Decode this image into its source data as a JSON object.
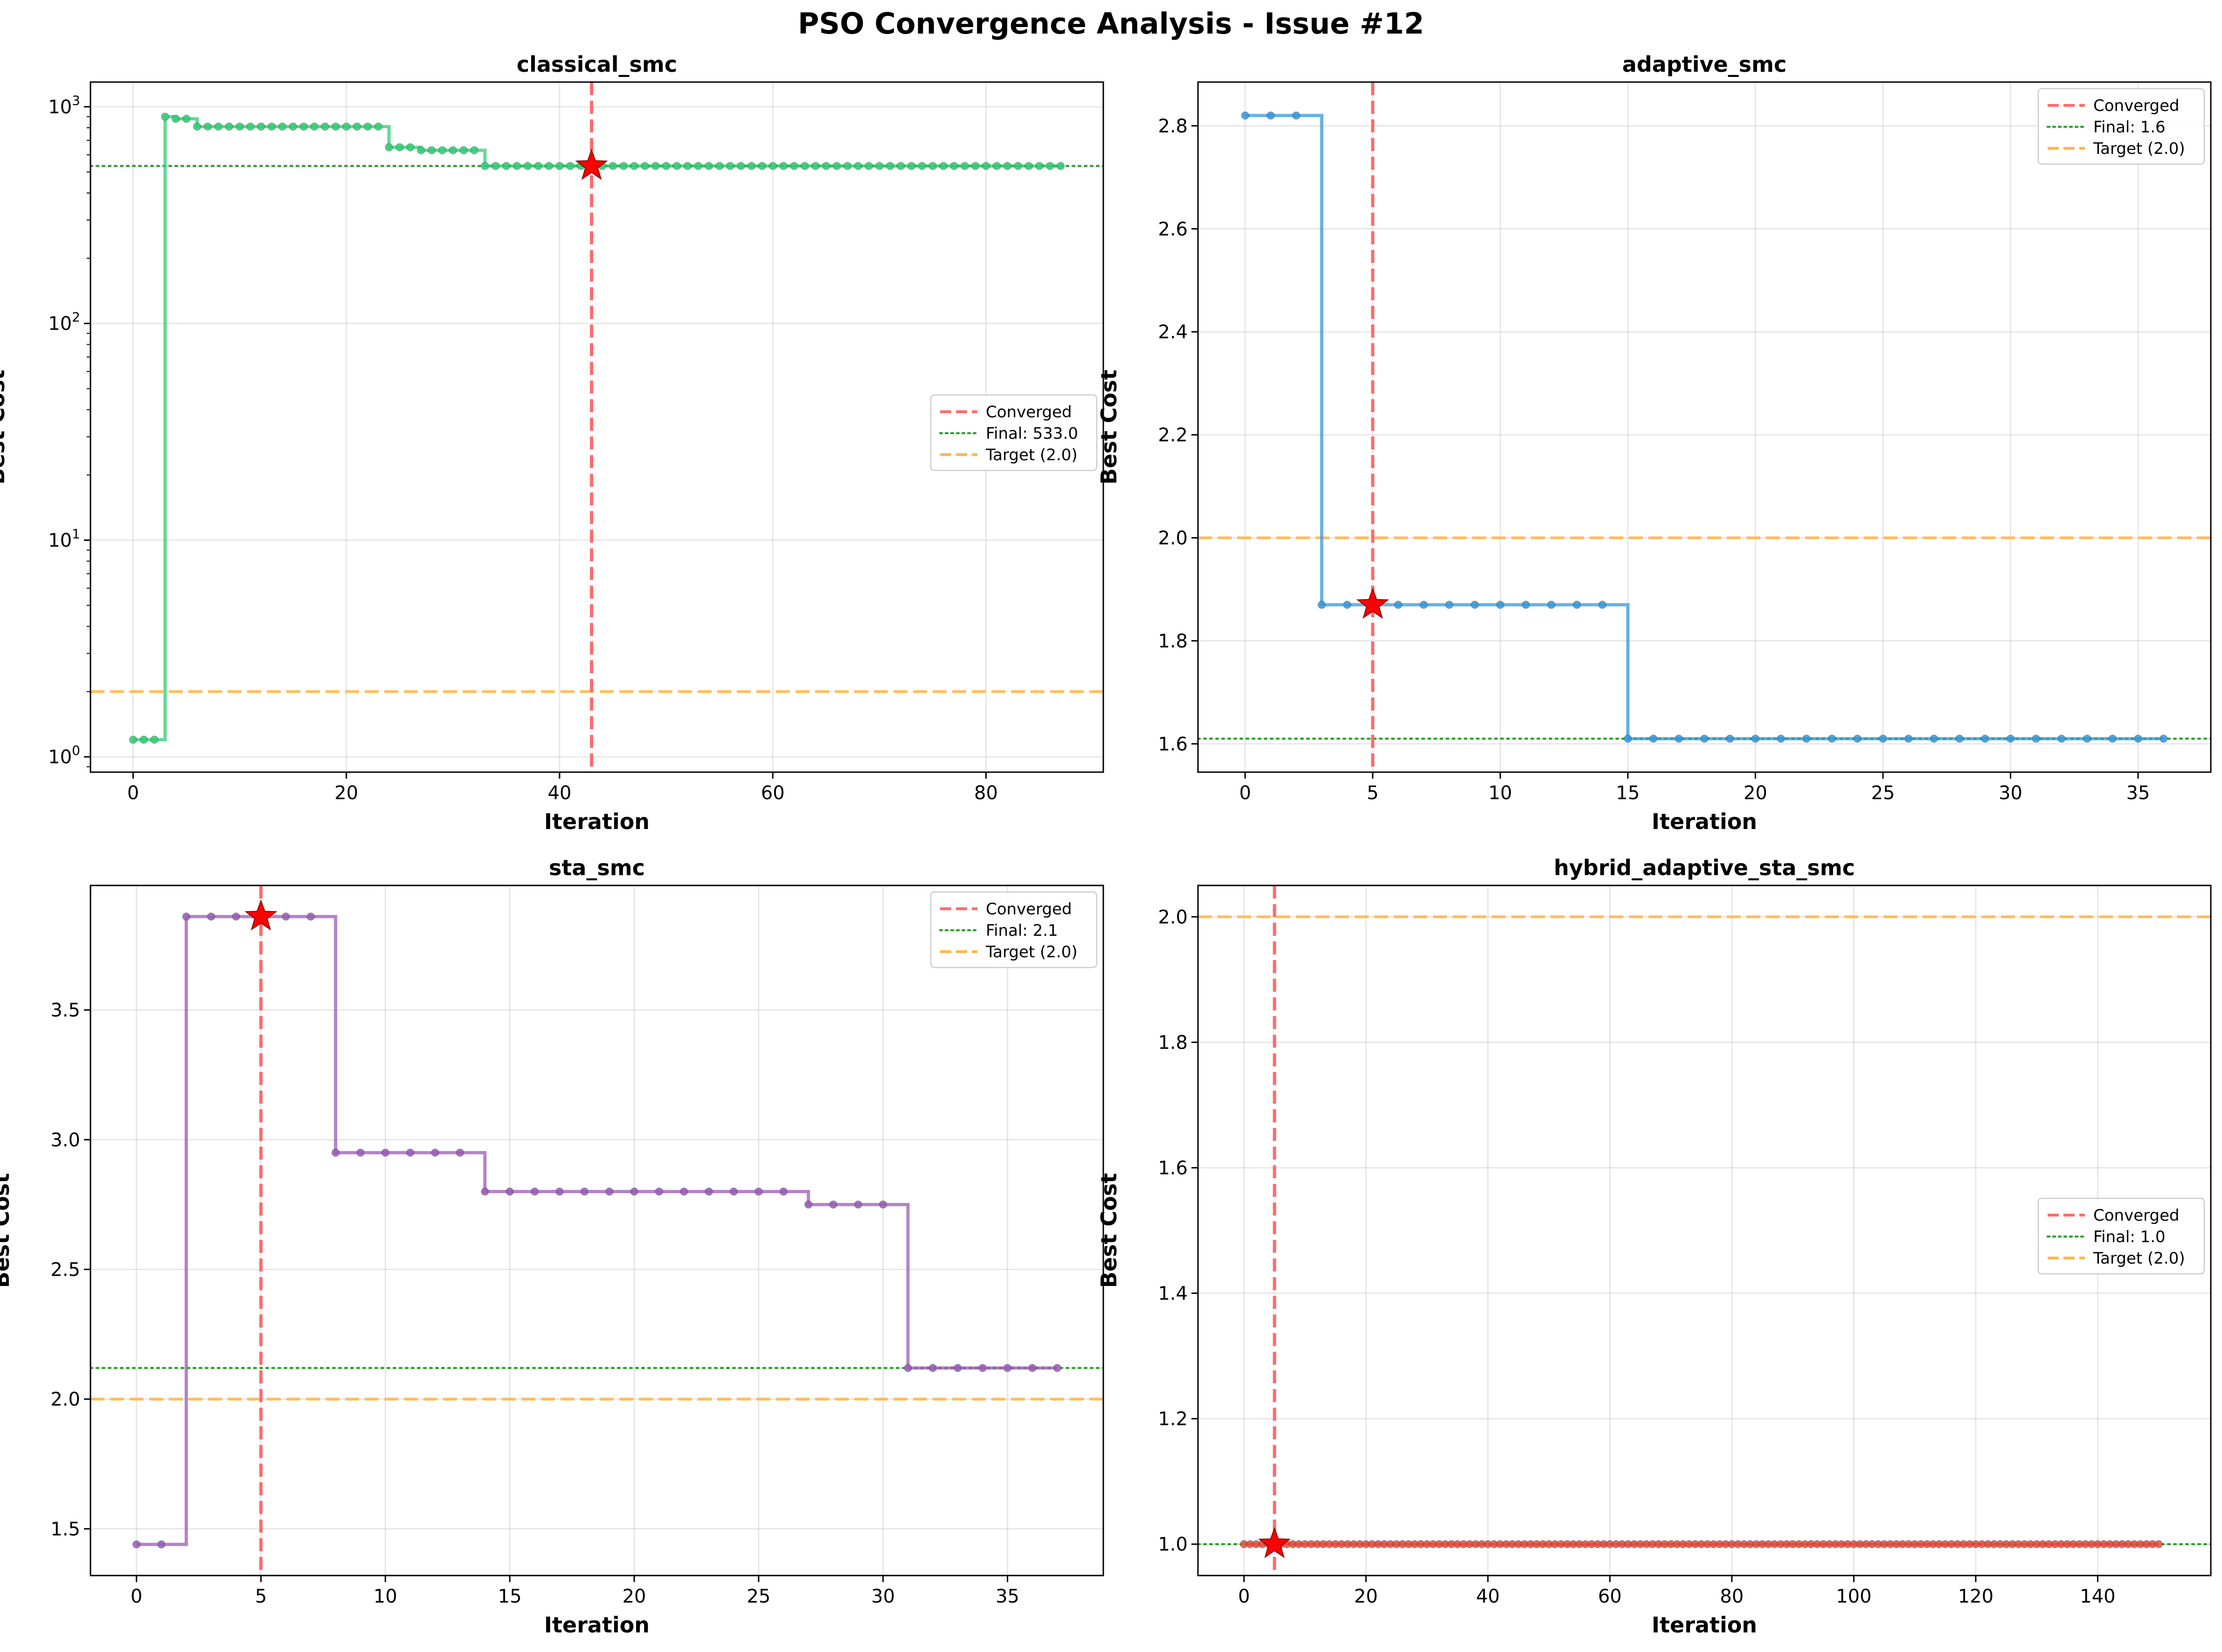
{
  "figure": {
    "title": "PSO Convergence Analysis - Issue #12"
  },
  "colors": {
    "converged": "#ff6b6b",
    "final": "#2ca02c",
    "target": "#ffb74d",
    "star": "#ff0000"
  },
  "chart_data": [
    {
      "type": "line",
      "title": "classical_smc",
      "xlabel": "Iteration",
      "ylabel": "Best Cost",
      "yscale": "log",
      "xlim": [
        -4,
        91
      ],
      "ylim": [
        0.85,
        1300
      ],
      "xticks": [
        0,
        20,
        40,
        60,
        80
      ],
      "yticks": [
        1,
        10,
        100,
        1000
      ],
      "ytick_labels": [
        [
          "10",
          "0"
        ],
        [
          "10",
          "1"
        ],
        [
          "10",
          "2"
        ],
        [
          "10",
          "3"
        ]
      ],
      "grid": true,
      "legend_position": "center-right",
      "color": "#2ecc71",
      "segments": [
        {
          "from": 0,
          "to": 3,
          "value": 1.2
        },
        {
          "from": 3,
          "to": 4,
          "value": 900
        },
        {
          "from": 4,
          "to": 6,
          "value": 880
        },
        {
          "from": 6,
          "to": 24,
          "value": 810
        },
        {
          "from": 24,
          "to": 27,
          "value": 650
        },
        {
          "from": 27,
          "to": 33,
          "value": 630
        },
        {
          "from": 33,
          "to": 88,
          "value": 533
        }
      ],
      "converged_iteration": 43,
      "converged_value": 533,
      "final_value": 533,
      "target_value": 2.0,
      "legend": [
        "Converged",
        "Final: 533.0",
        "Target (2.0)"
      ]
    },
    {
      "type": "line",
      "title": "adaptive_smc",
      "xlabel": "Iteration",
      "ylabel": "Best Cost",
      "yscale": "linear",
      "xlim": [
        -1.85,
        37.85
      ],
      "ylim": [
        1.545,
        2.885
      ],
      "xticks": [
        0,
        5,
        10,
        15,
        20,
        25,
        30,
        35
      ],
      "yticks": [
        1.6,
        1.8,
        2.0,
        2.2,
        2.4,
        2.6,
        2.8
      ],
      "ytick_labels": [
        "1.6",
        "1.8",
        "2.0",
        "2.2",
        "2.4",
        "2.6",
        "2.8"
      ],
      "grid": true,
      "legend_position": "top-right",
      "color": "#3498db",
      "segments": [
        {
          "from": 0,
          "to": 3,
          "value": 2.82
        },
        {
          "from": 3,
          "to": 15,
          "value": 1.87
        },
        {
          "from": 15,
          "to": 37,
          "value": 1.61
        }
      ],
      "converged_iteration": 5,
      "converged_value": 1.87,
      "final_value": 1.61,
      "target_value": 2.0,
      "legend": [
        "Converged",
        "Final: 1.6",
        "Target (2.0)"
      ]
    },
    {
      "type": "line",
      "title": "sta_smc",
      "xlabel": "Iteration",
      "ylabel": "Best Cost",
      "yscale": "linear",
      "xlim": [
        -1.85,
        38.85
      ],
      "ylim": [
        1.32,
        3.98
      ],
      "xticks": [
        0,
        5,
        10,
        15,
        20,
        25,
        30,
        35
      ],
      "yticks": [
        1.5,
        2.0,
        2.5,
        3.0,
        3.5
      ],
      "ytick_labels": [
        "1.5",
        "2.0",
        "2.5",
        "3.0",
        "3.5"
      ],
      "grid": true,
      "legend_position": "top-right",
      "color": "#9b59b6",
      "segments": [
        {
          "from": 0,
          "to": 2,
          "value": 1.44
        },
        {
          "from": 2,
          "to": 8,
          "value": 3.86
        },
        {
          "from": 8,
          "to": 14,
          "value": 2.95
        },
        {
          "from": 14,
          "to": 27,
          "value": 2.8
        },
        {
          "from": 27,
          "to": 31,
          "value": 2.75
        },
        {
          "from": 31,
          "to": 38,
          "value": 2.12
        }
      ],
      "converged_iteration": 5,
      "converged_value": 3.86,
      "final_value": 2.12,
      "target_value": 2.0,
      "legend": [
        "Converged",
        "Final: 2.1",
        "Target (2.0)"
      ]
    },
    {
      "type": "line",
      "title": "hybrid_adaptive_sta_smc",
      "xlabel": "Iteration",
      "ylabel": "Best Cost",
      "yscale": "linear",
      "xlim": [
        -7.55,
        158.55
      ],
      "ylim": [
        0.95,
        2.05
      ],
      "xticks": [
        0,
        20,
        40,
        60,
        80,
        100,
        120,
        140
      ],
      "yticks": [
        1.0,
        1.2,
        1.4,
        1.6,
        1.8,
        2.0
      ],
      "ytick_labels": [
        "1.0",
        "1.2",
        "1.4",
        "1.6",
        "1.8",
        "2.0"
      ],
      "grid": true,
      "legend_position": "center-right",
      "color": "#e74c3c",
      "segments": [
        {
          "from": 0,
          "to": 151,
          "value": 1.0
        }
      ],
      "converged_iteration": 5,
      "converged_value": 1.0,
      "final_value": 1.0,
      "target_value": 2.0,
      "legend": [
        "Converged",
        "Final: 1.0",
        "Target (2.0)"
      ]
    }
  ]
}
